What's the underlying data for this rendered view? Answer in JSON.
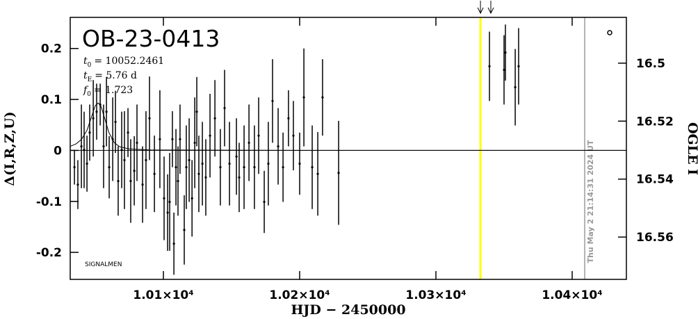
{
  "chart_data": {
    "type": "scatter",
    "title": "OB-23-0413",
    "params": [
      {
        "symbol": "t",
        "sub": "0",
        "text": "= 10052.2461"
      },
      {
        "symbol": "t",
        "sub": "E",
        "text": "= 5.76  d"
      },
      {
        "symbol": "f",
        "sub": "0",
        "text": "= 1.723"
      }
    ],
    "credit": "SIGNALMEN",
    "timestamp": "Thu May  2 21:14:31 2024 UT",
    "x_label": "HJD − 2450000",
    "y_label": "Δ(I,R,Z,U)",
    "y2_label": "OGLE I",
    "xlim": [
      10031.6,
      10439.8
    ],
    "ylim": [
      -0.253,
      0.261
    ],
    "y2lim": [
      16.5746,
      16.4842
    ],
    "xticks": [
      {
        "value": 10100,
        "label": "1.01×10⁴"
      },
      {
        "value": 10200,
        "label": "1.02×10⁴"
      },
      {
        "value": 10300,
        "label": "1.03×10⁴"
      },
      {
        "value": 10400,
        "label": "1.04×10⁴"
      }
    ],
    "yticks": [
      -0.2,
      -0.1,
      0,
      0.1,
      0.2
    ],
    "y2ticks": [
      16.5,
      16.52,
      16.54,
      16.56
    ],
    "zero_line": 0,
    "series": [
      {
        "color": "#000000",
        "x": [
          10034.7,
          10037.2,
          10039.8,
          10041.8,
          10043.9,
          10045.9,
          10048.5,
          10051.0,
          10053.6,
          10056.1,
          10058.2,
          10060.2,
          10062.8,
          10064.8,
          10066.8,
          10069.4,
          10071.4,
          10074.0,
          10076.0,
          10078.6,
          10080.6,
          10084.7,
          10087.2,
          10089.8,
          10093.4,
          10097.4,
          10100.5,
          10103.1,
          10104.6,
          10106.6,
          10107.7,
          10109.2,
          10110.7,
          10112.2,
          10115.3,
          10116.8,
          10118.9,
          10121.0,
          10123.0,
          10124.5,
          10126.0,
          10128.6,
          10131.1,
          10134.2,
          10137.8,
          10141.8,
          10144.9,
          10148.5,
          10153.6,
          10155.6,
          10159.2,
          10162.8,
          10166.8,
          10169.9,
          10174.0,
          10177.0,
          10180.1,
          10184.2,
          10187.8,
          10191.8,
          10195.4,
          10200.0,
          10203.1,
          10209.2,
          10213.3,
          10216.8,
          10228.6,
          10339.3,
          10350.0,
          10351.0,
          10358.2,
          10360.7
        ],
        "values": [
          -0.033,
          -0.067,
          0.008,
          0.001,
          -0.026,
          0.035,
          0.063,
          0.076,
          0.09,
          0.008,
          0.076,
          -0.033,
          0.022,
          0.056,
          -0.06,
          0.001,
          -0.019,
          0.035,
          -0.06,
          -0.04,
          0.015,
          -0.067,
          -0.019,
          0.063,
          -0.046,
          0.022,
          -0.094,
          -0.122,
          -0.101,
          0.022,
          -0.183,
          -0.033,
          -0.06,
          0.022,
          -0.156,
          -0.033,
          -0.019,
          -0.094,
          0.015,
          0.076,
          -0.046,
          -0.026,
          -0.053,
          0.029,
          0.063,
          -0.033,
          0.083,
          -0.026,
          -0.012,
          -0.053,
          -0.033,
          0.015,
          -0.033,
          0.029,
          -0.101,
          -0.026,
          0.097,
          0.008,
          -0.033,
          0.063,
          0.029,
          -0.026,
          0.104,
          -0.033,
          -0.046,
          0.104,
          -0.044,
          0.165,
          0.158,
          0.192,
          0.124,
          0.165
        ],
        "errors": [
          0.034,
          0.048,
          0.082,
          0.075,
          0.055,
          0.055,
          0.075,
          0.055,
          0.041,
          0.082,
          0.068,
          0.061,
          0.082,
          0.061,
          0.068,
          0.075,
          0.096,
          0.048,
          0.082,
          0.068,
          0.075,
          0.075,
          0.096,
          0.082,
          0.075,
          0.096,
          0.082,
          0.075,
          0.096,
          0.055,
          0.061,
          0.075,
          0.068,
          0.068,
          0.068,
          0.082,
          0.082,
          0.075,
          0.089,
          0.068,
          0.075,
          0.082,
          0.075,
          0.082,
          0.075,
          0.075,
          0.075,
          0.082,
          0.075,
          0.068,
          0.082,
          0.075,
          0.082,
          0.075,
          0.061,
          0.082,
          0.082,
          0.075,
          0.068,
          0.055,
          0.068,
          0.061,
          0.096,
          0.082,
          0.082,
          0.075,
          0.102,
          0.068,
          0.068,
          0.055,
          0.075,
          0.075
        ]
      }
    ],
    "model": {
      "color": "#000000",
      "x": [
        10031.6,
        10036,
        10040,
        10044,
        10047,
        10050,
        10052.2,
        10054,
        10057,
        10060,
        10064,
        10068,
        10075,
        10090,
        10200,
        10439.8
      ],
      "values": [
        0.008,
        0.013,
        0.022,
        0.04,
        0.064,
        0.088,
        0.093,
        0.088,
        0.062,
        0.035,
        0.015,
        0.007,
        0.003,
        0.001,
        0,
        0
      ]
    },
    "vlines": [
      {
        "x": 10332.7,
        "color": "#ffff00"
      },
      {
        "x": 10409.2,
        "color": "#999999"
      }
    ],
    "arrows": [
      10332.7,
      10340.3
    ]
  }
}
